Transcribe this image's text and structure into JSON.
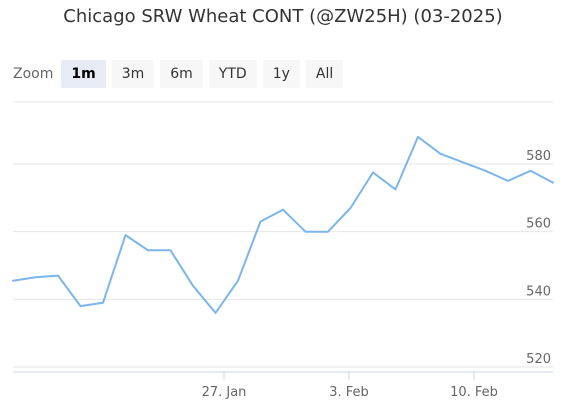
{
  "chart_data": {
    "type": "line",
    "title": "Chicago SRW Wheat CONT (@ZW25H) (03-2025)",
    "xlabel": "",
    "ylabel": "",
    "ylim": [
      520,
      590
    ],
    "yticks": [
      520,
      540,
      560,
      580
    ],
    "grid": true,
    "legend": "none",
    "x_tick_labels": [
      {
        "x": "2025-01-27",
        "label": "27. Jan"
      },
      {
        "x": "2025-02-03",
        "label": "3. Feb"
      },
      {
        "x": "2025-02-10",
        "label": "10. Feb"
      }
    ],
    "series": [
      {
        "color": "#7cb5ec",
        "x": [
          "2025-01-13",
          "2025-01-14",
          "2025-01-15",
          "2025-01-16",
          "2025-01-17",
          "2025-01-20",
          "2025-01-21",
          "2025-01-22",
          "2025-01-23",
          "2025-01-24",
          "2025-01-27",
          "2025-01-28",
          "2025-01-29",
          "2025-01-30",
          "2025-01-31",
          "2025-02-03",
          "2025-02-04",
          "2025-02-05",
          "2025-02-06",
          "2025-02-07",
          "2025-02-10",
          "2025-02-11",
          "2025-02-12",
          "2025-02-13",
          "2025-02-14"
        ],
        "values": [
          545.5,
          546.5,
          547,
          538,
          539,
          559,
          554.5,
          554.5,
          544,
          536,
          545.5,
          563,
          566.5,
          560,
          560,
          567,
          577.5,
          572.5,
          588,
          583,
          580.5,
          578,
          575,
          578,
          574.5
        ]
      }
    ]
  },
  "zoom": {
    "label": "Zoom",
    "buttons": [
      "1m",
      "3m",
      "6m",
      "YTD",
      "1y",
      "All"
    ],
    "selected": "1m"
  }
}
